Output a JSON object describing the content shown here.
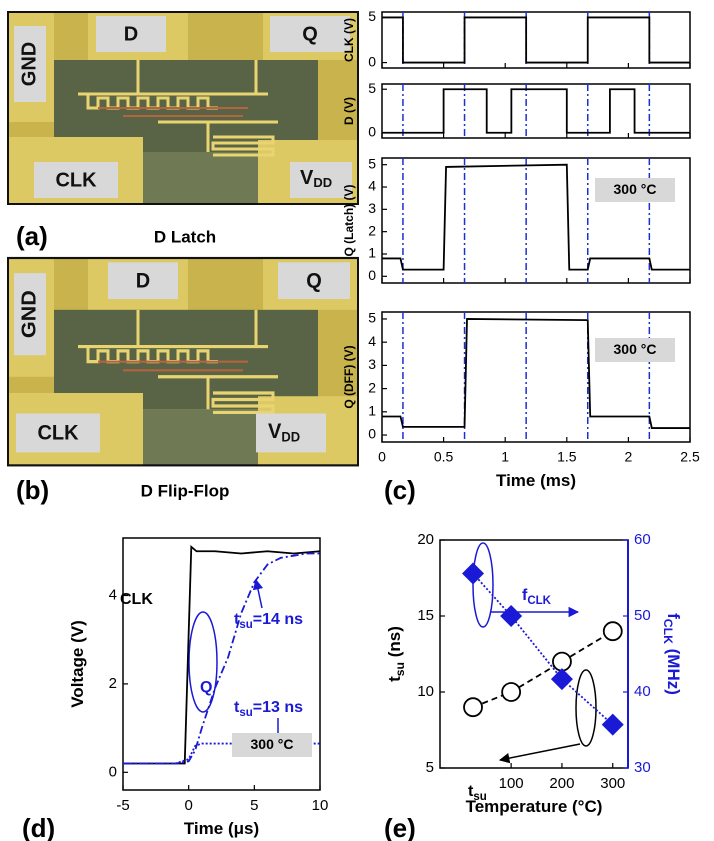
{
  "micrographs": [
    {
      "panel_label": "(a)",
      "caption": "D Latch",
      "pads": [
        "GND",
        "D",
        "Q",
        "CLK"
      ],
      "vdd": {
        "text": "V",
        "sub": "DD"
      }
    },
    {
      "panel_label": "(b)",
      "caption": "D Flip-Flop",
      "pads": [
        "GND",
        "D",
        "Q",
        "CLK"
      ],
      "vdd": {
        "text": "V",
        "sub": "DD"
      }
    }
  ],
  "panel_labels": [
    "(c)",
    "(d)",
    "(e)"
  ],
  "chart_data": [
    {
      "type": "line",
      "ylabel": {
        "text": "CLK (V)"
      },
      "xlim": [
        0,
        2.5
      ],
      "xticks": [
        0,
        0.5,
        1,
        1.5,
        2,
        2.5
      ],
      "ylim": [
        -0.6,
        5.6
      ],
      "yticks": [
        0,
        5
      ],
      "clock_edges": [
        0.17,
        0.67,
        1.17,
        1.67,
        2.17
      ],
      "edge_color": "#1a2fd6",
      "series": [
        {
          "color": "#000000",
          "line_style": "solid",
          "x": [
            0,
            0.17,
            0.17,
            0.67,
            0.67,
            1.17,
            1.17,
            1.67,
            1.67,
            2.17,
            2.17,
            2.5
          ],
          "values": [
            5,
            5,
            0,
            0,
            5,
            5,
            0,
            0,
            5,
            5,
            0,
            0
          ]
        }
      ]
    },
    {
      "type": "line",
      "ylabel": {
        "text": "D (V)"
      },
      "xlim": [
        0,
        2.5
      ],
      "xticks": [
        0,
        0.5,
        1,
        1.5,
        2,
        2.5
      ],
      "ylim": [
        -0.6,
        5.6
      ],
      "yticks": [
        0,
        5
      ],
      "clock_edges": [
        0.17,
        0.67,
        1.17,
        1.67,
        2.17
      ],
      "edge_color": "#1a2fd6",
      "series": [
        {
          "color": "#000000",
          "line_style": "solid",
          "x": [
            0,
            0.5,
            0.5,
            0.85,
            0.85,
            1.05,
            1.05,
            1.5,
            1.5,
            1.85,
            1.85,
            2.05,
            2.05,
            2.5
          ],
          "values": [
            0,
            0,
            5,
            5,
            0,
            0,
            5,
            5,
            0,
            0,
            5,
            5,
            0,
            0
          ]
        }
      ]
    },
    {
      "type": "line",
      "ylabel": {
        "text": "Q (Latch) (V)"
      },
      "xlim": [
        0,
        2.5
      ],
      "xticks": [
        0,
        0.5,
        1,
        1.5,
        2,
        2.5
      ],
      "ylim": [
        -0.3,
        5.3
      ],
      "yticks": [
        0,
        1,
        2,
        3,
        4,
        5
      ],
      "clock_edges": [
        0.17,
        0.67,
        1.17,
        1.67,
        2.17
      ],
      "edge_color": "#1a2fd6",
      "annotations": [
        {
          "text": "300 °C",
          "boxed": true
        }
      ],
      "series": [
        {
          "color": "#000000",
          "line_style": "solid",
          "x": [
            0,
            0.15,
            0.17,
            0.5,
            0.52,
            1.5,
            1.52,
            1.67,
            1.69,
            2.17,
            2.19,
            2.5
          ],
          "values": [
            0.8,
            0.8,
            0.3,
            0.3,
            4.9,
            5.0,
            0.3,
            0.3,
            0.8,
            0.8,
            0.3,
            0.3
          ]
        }
      ]
    },
    {
      "type": "line",
      "ylabel": {
        "text": "Q (DFF) (V)"
      },
      "xlabel": {
        "text": "Time (ms)"
      },
      "x_tick_labels": true,
      "xlim": [
        0,
        2.5
      ],
      "xticks": [
        0,
        0.5,
        1,
        1.5,
        2,
        2.5
      ],
      "ylim": [
        -0.3,
        5.3
      ],
      "yticks": [
        0,
        1,
        2,
        3,
        4,
        5
      ],
      "clock_edges": [
        0.17,
        0.67,
        1.17,
        1.67,
        2.17
      ],
      "edge_color": "#1a2fd6",
      "annotations": [
        {
          "text": "300 °C",
          "boxed": true
        }
      ],
      "series": [
        {
          "color": "#000000",
          "line_style": "solid",
          "x": [
            0,
            0.15,
            0.17,
            0.67,
            0.69,
            1.67,
            1.69,
            2.17,
            2.19,
            2.5
          ],
          "values": [
            0.8,
            0.8,
            0.35,
            0.35,
            5.0,
            4.95,
            0.8,
            0.8,
            0.3,
            0.3
          ]
        }
      ]
    },
    {
      "type": "line",
      "ylabel": {
        "text": "Voltage (V)"
      },
      "xlabel": {
        "text": "Time (μs)"
      },
      "x_tick_labels": true,
      "xlim": [
        -5,
        10
      ],
      "xticks": [
        -5,
        0,
        5,
        10
      ],
      "ylim": [
        -0.4,
        5.3
      ],
      "yticks": [
        0,
        2,
        4
      ],
      "annotations": [
        {
          "text": "CLK"
        },
        {
          "text": "Q",
          "color": "#1a1ad6"
        },
        {
          "text": "t",
          "sub": "su",
          "after": "=14 ns",
          "color": "#1a1ad6"
        },
        {
          "text": "t",
          "sub": "su",
          "after": "=13 ns",
          "color": "#1a1ad6"
        },
        {
          "text": "300 °C",
          "boxed": true
        }
      ],
      "series": [
        {
          "color": "#000000",
          "line_style": "solid",
          "x": [
            -5,
            -0.3,
            0.2,
            0.6,
            2,
            4,
            6,
            8,
            10
          ],
          "values": [
            0.2,
            0.2,
            5.1,
            5.0,
            5.0,
            4.95,
            5.0,
            4.95,
            5.0
          ]
        },
        {
          "color": "#1a1ad6",
          "line_style": "dash-dot",
          "x": [
            -5,
            -1,
            0,
            0.5,
            1,
            2,
            3,
            4,
            5,
            6,
            7,
            8,
            9,
            10
          ],
          "values": [
            0.2,
            0.2,
            0.25,
            0.5,
            1.0,
            1.9,
            2.6,
            3.6,
            4.3,
            4.7,
            4.85,
            4.9,
            4.95,
            4.95
          ]
        },
        {
          "color": "#1a1ad6",
          "line_style": "dotted",
          "x": [
            -5,
            -1,
            0,
            0.5,
            1,
            3,
            5,
            7,
            10
          ],
          "values": [
            0.2,
            0.2,
            0.3,
            0.6,
            0.65,
            0.65,
            0.65,
            0.65,
            0.65
          ]
        }
      ]
    },
    {
      "type": "line",
      "ylabel": {
        "text": "t",
        "sub": "su",
        "after": " (ns)"
      },
      "y2label": {
        "text": "f",
        "sub": "CLK",
        "after": " (MHz)"
      },
      "y2_color": "#1a1ad6",
      "xlabel": {
        "text": "Temperature (°C)"
      },
      "x_tick_labels": true,
      "xlim": [
        -40,
        330
      ],
      "xticks": [
        100,
        200,
        300
      ],
      "ylim": [
        5,
        20
      ],
      "yticks": [
        5,
        10,
        15,
        20
      ],
      "y2lim": [
        30,
        60
      ],
      "y2ticks": [
        30,
        40,
        50,
        60
      ],
      "annotations": [
        {
          "text": "f",
          "sub": "CLK",
          "color": "#1a1ad6"
        },
        {
          "text": "t",
          "sub": "su"
        }
      ],
      "series": [
        {
          "color": "#000000",
          "line_style": "dashed",
          "marker": "circle",
          "x": [
            25,
            100,
            200,
            300
          ],
          "values": [
            9,
            10,
            12,
            14
          ]
        },
        {
          "color": "#1a1ad6",
          "line_style": "dotted",
          "marker": "diamond",
          "axis": "y2",
          "x": [
            25,
            100,
            200,
            300
          ],
          "values": [
            55.6,
            50,
            41.7,
            35.7
          ]
        }
      ]
    }
  ]
}
